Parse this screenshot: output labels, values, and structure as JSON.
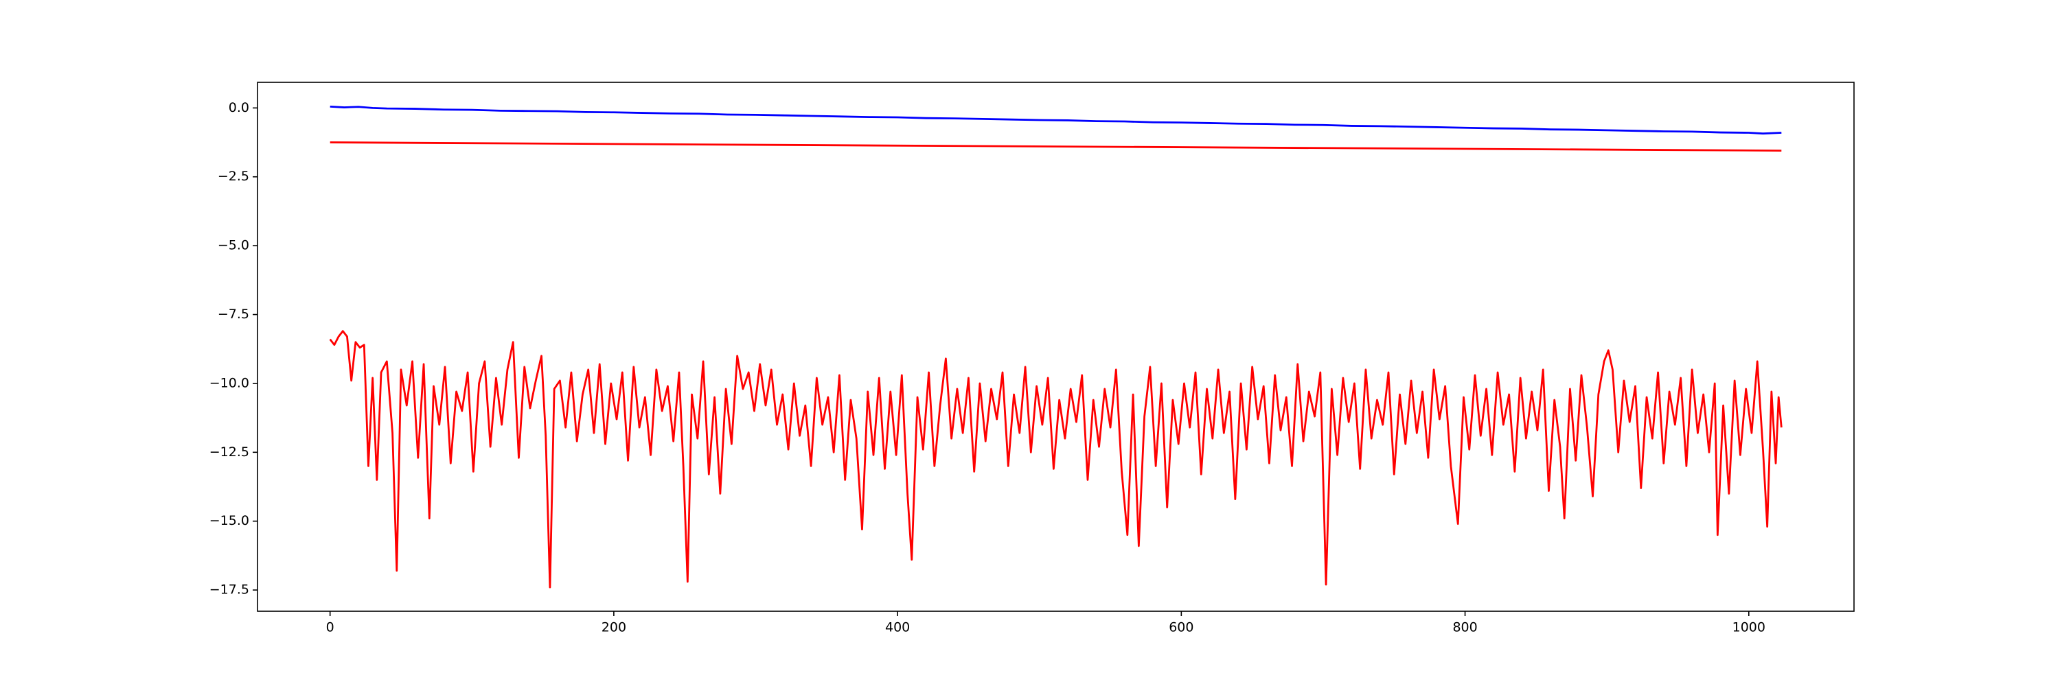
{
  "chart_data": {
    "type": "line",
    "xlim": [
      -51.15,
      1074.15
    ],
    "xticks": [
      0,
      200,
      400,
      600,
      800,
      1000
    ],
    "ylim": [
      -18.27,
      0.93
    ],
    "yticks": [
      {
        "value": 0,
        "label": "0.0"
      },
      {
        "value": -2.5,
        "label": "−2.5"
      },
      {
        "value": -5,
        "label": "−5.0"
      },
      {
        "value": -7.5,
        "label": "−7.5"
      },
      {
        "value": -10,
        "label": "−10.0"
      },
      {
        "value": -12.5,
        "label": "−12.5"
      },
      {
        "value": -15,
        "label": "−15.0"
      },
      {
        "value": -17.5,
        "label": "−17.5"
      }
    ],
    "series": [
      {
        "color": "#0000ff",
        "x": [
          0,
          10,
          20,
          30,
          40,
          60,
          80,
          100,
          120,
          140,
          160,
          180,
          200,
          220,
          240,
          260,
          280,
          300,
          320,
          340,
          360,
          380,
          400,
          420,
          440,
          460,
          480,
          500,
          520,
          540,
          560,
          580,
          600,
          620,
          640,
          660,
          680,
          700,
          720,
          740,
          760,
          780,
          800,
          820,
          840,
          860,
          880,
          900,
          920,
          940,
          960,
          980,
          1000,
          1010,
          1023
        ],
        "values": [
          0.05,
          0.02,
          0.04,
          0.0,
          -0.02,
          -0.03,
          -0.06,
          -0.07,
          -0.1,
          -0.11,
          -0.12,
          -0.15,
          -0.16,
          -0.18,
          -0.2,
          -0.21,
          -0.24,
          -0.25,
          -0.27,
          -0.29,
          -0.31,
          -0.33,
          -0.34,
          -0.37,
          -0.38,
          -0.4,
          -0.42,
          -0.44,
          -0.45,
          -0.48,
          -0.49,
          -0.52,
          -0.53,
          -0.55,
          -0.57,
          -0.58,
          -0.61,
          -0.62,
          -0.65,
          -0.66,
          -0.68,
          -0.7,
          -0.72,
          -0.74,
          -0.75,
          -0.78,
          -0.79,
          -0.81,
          -0.83,
          -0.85,
          -0.86,
          -0.89,
          -0.9,
          -0.93,
          -0.9
        ]
      },
      {
        "color": "#ff0000",
        "x": [
          0,
          1023
        ],
        "values": [
          -1.25,
          -1.55
        ]
      },
      {
        "color": "#ff0000",
        "x": [
          0,
          3,
          6,
          9,
          12,
          15,
          18,
          21,
          24,
          27,
          30,
          33,
          36,
          40,
          44,
          47,
          50,
          54,
          58,
          62,
          66,
          70,
          73,
          77,
          81,
          85,
          89,
          93,
          97,
          101,
          105,
          109,
          113,
          117,
          121,
          125,
          129,
          133,
          137,
          141,
          145,
          149,
          152,
          155,
          158,
          162,
          166,
          170,
          174,
          178,
          182,
          186,
          190,
          194,
          198,
          202,
          206,
          210,
          214,
          218,
          222,
          226,
          230,
          234,
          238,
          242,
          246,
          249,
          252,
          255,
          259,
          263,
          267,
          271,
          275,
          279,
          283,
          287,
          291,
          295,
          299,
          303,
          307,
          311,
          315,
          319,
          323,
          327,
          331,
          335,
          339,
          343,
          347,
          351,
          355,
          359,
          363,
          367,
          371,
          375,
          379,
          383,
          387,
          391,
          395,
          399,
          403,
          407,
          410,
          414,
          418,
          422,
          426,
          430,
          434,
          438,
          442,
          446,
          450,
          454,
          458,
          462,
          466,
          470,
          474,
          478,
          482,
          486,
          490,
          494,
          498,
          502,
          506,
          510,
          514,
          518,
          522,
          526,
          530,
          534,
          538,
          542,
          546,
          550,
          554,
          558,
          562,
          566,
          570,
          574,
          578,
          582,
          586,
          590,
          594,
          598,
          602,
          606,
          610,
          614,
          618,
          622,
          626,
          630,
          634,
          638,
          642,
          646,
          650,
          654,
          658,
          662,
          666,
          670,
          674,
          678,
          682,
          686,
          690,
          694,
          698,
          702,
          706,
          710,
          714,
          718,
          722,
          726,
          730,
          734,
          738,
          742,
          746,
          750,
          754,
          758,
          762,
          766,
          770,
          774,
          778,
          782,
          786,
          790,
          795,
          799,
          803,
          807,
          811,
          815,
          819,
          823,
          827,
          831,
          835,
          839,
          843,
          847,
          851,
          855,
          859,
          863,
          867,
          870,
          874,
          878,
          882,
          886,
          890,
          894,
          898,
          901,
          904,
          908,
          912,
          916,
          920,
          924,
          928,
          932,
          936,
          940,
          944,
          948,
          952,
          956,
          960,
          964,
          968,
          972,
          976,
          978,
          982,
          986,
          990,
          994,
          998,
          1002,
          1006,
          1010,
          1013,
          1016,
          1019,
          1021,
          1023
        ],
        "values": [
          -8.4,
          -8.6,
          -8.3,
          -8.1,
          -8.3,
          -9.9,
          -8.5,
          -8.7,
          -8.6,
          -13.0,
          -9.8,
          -13.5,
          -9.6,
          -9.2,
          -11.8,
          -16.8,
          -9.5,
          -10.8,
          -9.2,
          -12.7,
          -9.3,
          -14.9,
          -10.1,
          -11.5,
          -9.4,
          -12.9,
          -10.3,
          -11.0,
          -9.6,
          -13.2,
          -10.0,
          -9.2,
          -12.3,
          -9.8,
          -11.5,
          -9.5,
          -8.5,
          -12.7,
          -9.4,
          -10.9,
          -9.9,
          -9.0,
          -11.9,
          -17.4,
          -10.2,
          -9.9,
          -11.6,
          -9.6,
          -12.1,
          -10.4,
          -9.5,
          -11.8,
          -9.3,
          -12.2,
          -10.0,
          -11.3,
          -9.6,
          -12.8,
          -9.4,
          -11.6,
          -10.5,
          -12.6,
          -9.5,
          -11.0,
          -10.1,
          -12.1,
          -9.6,
          -13.0,
          -17.2,
          -10.4,
          -12.0,
          -9.2,
          -13.3,
          -10.5,
          -14.0,
          -10.2,
          -12.2,
          -9.0,
          -10.2,
          -9.6,
          -11.0,
          -9.3,
          -10.8,
          -9.5,
          -11.5,
          -10.4,
          -12.4,
          -10.0,
          -11.9,
          -10.8,
          -13.0,
          -9.8,
          -11.5,
          -10.5,
          -12.5,
          -9.7,
          -13.5,
          -10.6,
          -12.0,
          -15.3,
          -10.3,
          -12.6,
          -9.8,
          -13.1,
          -10.3,
          -12.6,
          -9.7,
          -14.0,
          -16.4,
          -10.5,
          -12.4,
          -9.6,
          -13.0,
          -10.8,
          -9.1,
          -12.0,
          -10.2,
          -11.8,
          -9.8,
          -13.2,
          -10.0,
          -12.1,
          -10.2,
          -11.3,
          -9.6,
          -13.0,
          -10.4,
          -11.8,
          -9.4,
          -12.5,
          -10.1,
          -11.5,
          -9.8,
          -13.1,
          -10.6,
          -12.0,
          -10.2,
          -11.4,
          -9.7,
          -13.5,
          -10.6,
          -12.3,
          -10.2,
          -11.6,
          -9.5,
          -13.2,
          -15.5,
          -10.4,
          -15.9,
          -11.2,
          -9.4,
          -13.0,
          -10.0,
          -14.5,
          -10.6,
          -12.2,
          -10.0,
          -11.6,
          -9.6,
          -13.3,
          -10.2,
          -12.0,
          -9.5,
          -11.8,
          -10.3,
          -14.2,
          -10.0,
          -12.4,
          -9.4,
          -11.3,
          -10.1,
          -12.9,
          -9.7,
          -11.7,
          -10.5,
          -13.0,
          -9.3,
          -12.1,
          -10.3,
          -11.2,
          -9.6,
          -17.3,
          -10.2,
          -12.6,
          -9.8,
          -11.4,
          -10.0,
          -13.1,
          -9.5,
          -12.0,
          -10.6,
          -11.5,
          -9.6,
          -13.3,
          -10.4,
          -12.2,
          -9.9,
          -11.8,
          -10.3,
          -12.7,
          -9.5,
          -11.3,
          -10.1,
          -13.0,
          -15.1,
          -10.5,
          -12.4,
          -9.7,
          -11.9,
          -10.2,
          -12.6,
          -9.6,
          -11.5,
          -10.4,
          -13.2,
          -9.8,
          -12.0,
          -10.3,
          -11.7,
          -9.5,
          -13.9,
          -10.6,
          -12.3,
          -14.9,
          -10.2,
          -12.8,
          -9.7,
          -11.6,
          -14.1,
          -10.4,
          -9.2,
          -8.8,
          -9.5,
          -12.5,
          -9.9,
          -11.4,
          -10.1,
          -13.8,
          -10.5,
          -12.0,
          -9.6,
          -12.9,
          -10.3,
          -11.5,
          -9.8,
          -13.0,
          -9.5,
          -11.8,
          -10.4,
          -12.5,
          -10.0,
          -15.5,
          -10.8,
          -14.0,
          -9.9,
          -12.6,
          -10.2,
          -11.8,
          -9.2,
          -12.4,
          -15.2,
          -10.3,
          -12.9,
          -10.5,
          -11.6
        ]
      }
    ]
  }
}
